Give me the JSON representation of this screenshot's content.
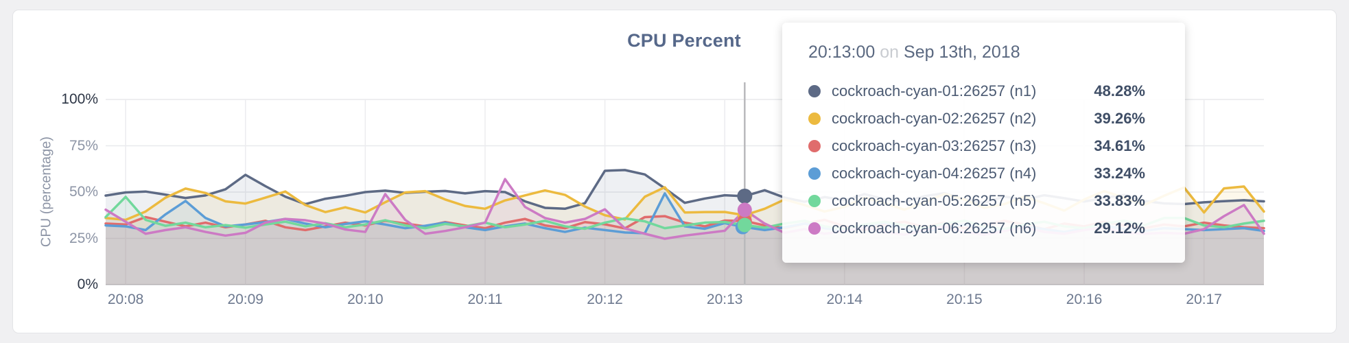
{
  "header": {
    "title": "CPU Percent"
  },
  "axes": {
    "y_label": "CPU (percentage)"
  },
  "tooltip": {
    "time": "20:13:00",
    "on_word": "on",
    "date": "Sep 13th, 2018",
    "rows": [
      {
        "label": "cockroach-cyan-01:26257 (n1)",
        "value": "48.28%",
        "color": "#5d6a85"
      },
      {
        "label": "cockroach-cyan-02:26257 (n2)",
        "value": "39.26%",
        "color": "#ecba3f"
      },
      {
        "label": "cockroach-cyan-03:26257 (n3)",
        "value": "34.61%",
        "color": "#e06c6c"
      },
      {
        "label": "cockroach-cyan-04:26257 (n4)",
        "value": "33.24%",
        "color": "#5c9dd6"
      },
      {
        "label": "cockroach-cyan-05:26257 (n5)",
        "value": "33.83%",
        "color": "#72d89c"
      },
      {
        "label": "cockroach-cyan-06:26257 (n6)",
        "value": "29.12%",
        "color": "#cc7ac4"
      }
    ]
  },
  "chart_data": {
    "type": "line",
    "title": "CPU Percent",
    "ylabel": "CPU (percentage)",
    "ylim": [
      0,
      100
    ],
    "y_ticks": [
      "100%",
      "75%",
      "50%",
      "25%",
      "0%"
    ],
    "y_tick_values": [
      100,
      75,
      50,
      25,
      0
    ],
    "x_ticks": [
      "20:08",
      "20:09",
      "20:10",
      "20:11",
      "20:12",
      "20:13",
      "20:14",
      "20:15",
      "20:16",
      "20:17"
    ],
    "x_start": "20:07:50",
    "x_end": "20:17:30",
    "interval_seconds": 10,
    "grid": true,
    "hover": {
      "time": "20:13:00",
      "index": 32,
      "date": "Sep 13th, 2018"
    },
    "series": [
      {
        "name": "cockroach-cyan-01:26257 (n1)",
        "short": "n1",
        "color": "#5d6a85",
        "values": [
          48.1,
          49.8,
          50.3,
          48.6,
          46.8,
          48.2,
          51.5,
          59.3,
          53.2,
          47.5,
          43.5,
          46.4,
          48.0,
          50.0,
          50.8,
          49.6,
          50.2,
          50.6,
          49.3,
          50.5,
          50.0,
          45.0,
          41.5,
          41.0,
          44.0,
          61.5,
          61.9,
          59.5,
          52.0,
          44.2,
          46.5,
          48.28,
          47.8,
          51.0,
          47.0,
          44.8,
          47.3,
          45.6,
          48.9,
          46.2,
          44.7,
          47.8,
          49.4,
          46.1,
          44.3,
          47.6,
          45.9,
          48.3,
          46.7,
          44.9,
          46.8,
          48.5,
          45.2,
          43.9,
          43.5,
          44.5,
          45.1,
          45.6,
          45.0
        ]
      },
      {
        "name": "cockroach-cyan-02:26257 (n2)",
        "short": "n2",
        "color": "#ecba3f",
        "values": [
          36.0,
          35.0,
          39.5,
          47.0,
          51.9,
          49.5,
          45.0,
          43.8,
          47.0,
          50.3,
          43.0,
          39.2,
          41.8,
          39.0,
          44.5,
          49.8,
          50.5,
          46.0,
          42.5,
          41.0,
          45.5,
          48.2,
          50.9,
          48.5,
          42.2,
          37.5,
          35.2,
          47.5,
          52.6,
          39.0,
          39.2,
          39.26,
          37.5,
          41.0,
          46.0,
          43.0,
          39.5,
          42.0,
          47.0,
          44.0,
          40.5,
          44.5,
          49.0,
          46.0,
          41.5,
          43.5,
          47.5,
          44.0,
          40.0,
          46.0,
          50.5,
          47.0,
          43.0,
          48.0,
          52.5,
          39.0,
          52.0,
          53.0,
          39.5
        ]
      },
      {
        "name": "cockroach-cyan-03:26257 (n3)",
        "short": "n3",
        "color": "#e06c6c",
        "values": [
          33.0,
          32.5,
          36.5,
          34.0,
          31.5,
          33.5,
          31.0,
          32.5,
          34.5,
          31.0,
          29.5,
          31.5,
          33.5,
          32.0,
          34.5,
          33.0,
          31.5,
          33.8,
          32.0,
          30.5,
          33.5,
          35.5,
          32.0,
          30.5,
          33.8,
          32.6,
          30.4,
          36.5,
          37.0,
          33.5,
          31.5,
          34.61,
          34.4,
          32.0,
          30.5,
          33.0,
          35.0,
          31.5,
          29.5,
          32.5,
          34.0,
          31.0,
          33.5,
          30.5,
          32.0,
          34.5,
          32.5,
          30.0,
          33.0,
          31.5,
          34.0,
          32.0,
          30.5,
          32.5,
          31.5,
          33.5,
          32.0,
          31.0,
          30.5
        ]
      },
      {
        "name": "cockroach-cyan-04:26257 (n4)",
        "short": "n4",
        "color": "#5c9dd6",
        "values": [
          32.0,
          31.5,
          29.5,
          38.0,
          45.2,
          36.0,
          31.5,
          32.5,
          33.8,
          35.5,
          33.0,
          31.0,
          32.8,
          34.2,
          32.5,
          30.5,
          31.8,
          33.5,
          31.0,
          29.5,
          31.5,
          33.0,
          30.5,
          28.5,
          30.8,
          29.5,
          28.2,
          27.8,
          49.3,
          31.5,
          30.2,
          33.24,
          31.1,
          29.5,
          31.0,
          33.0,
          30.5,
          29.0,
          31.5,
          33.5,
          30.0,
          28.5,
          31.0,
          32.5,
          30.0,
          29.5,
          31.5,
          30.0,
          28.5,
          30.5,
          32.0,
          30.0,
          29.0,
          30.5,
          30.0,
          29.5,
          30.0,
          30.5,
          29.0
        ]
      },
      {
        "name": "cockroach-cyan-05:26257 (n5)",
        "short": "n5",
        "color": "#72d89c",
        "values": [
          36.5,
          47.4,
          35.0,
          31.8,
          33.5,
          31.0,
          32.2,
          30.8,
          32.5,
          34.0,
          31.5,
          33.2,
          31.0,
          32.5,
          34.8,
          32.0,
          30.5,
          32.8,
          31.5,
          33.5,
          31.0,
          32.5,
          34.5,
          31.5,
          30.2,
          33.5,
          35.8,
          34.2,
          30.5,
          32.0,
          33.5,
          33.83,
          32.2,
          30.8,
          33.0,
          34.5,
          31.5,
          30.0,
          32.5,
          34.0,
          32.0,
          30.5,
          33.0,
          34.5,
          31.5,
          30.0,
          32.5,
          34.0,
          31.5,
          30.5,
          33.0,
          34.5,
          32.0,
          36.0,
          36.0,
          32.0,
          31.0,
          33.0,
          34.5
        ]
      },
      {
        "name": "cockroach-cyan-06:26257 (n6)",
        "short": "n6",
        "color": "#cc7ac4",
        "values": [
          40.5,
          34.0,
          27.5,
          29.5,
          31.0,
          28.5,
          26.5,
          28.0,
          33.5,
          35.5,
          34.8,
          33.0,
          29.8,
          28.5,
          48.9,
          35.0,
          27.5,
          29.0,
          31.0,
          33.5,
          57.0,
          42.0,
          36.0,
          33.5,
          35.5,
          40.7,
          30.4,
          27.5,
          24.8,
          26.5,
          27.8,
          29.12,
          40.4,
          33.0,
          28.0,
          30.0,
          27.5,
          29.0,
          31.0,
          28.5,
          27.0,
          29.5,
          31.5,
          28.5,
          27.0,
          29.0,
          31.0,
          28.5,
          27.5,
          29.5,
          31.0,
          28.0,
          27.5,
          28.0,
          27.5,
          30.0,
          37.0,
          43.0,
          27.5
        ]
      }
    ]
  }
}
